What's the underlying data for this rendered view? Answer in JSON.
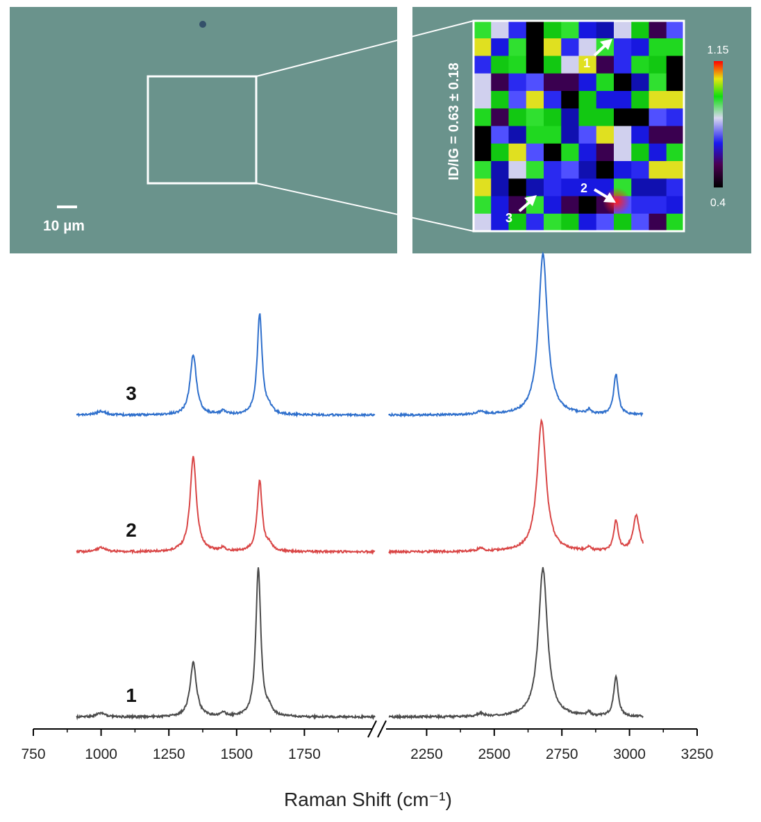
{
  "micrograph": {
    "scale_bar_label": "10 µm"
  },
  "raman_map": {
    "ratio_label": "ID/IG = 0.63 ± 0.18",
    "colorbar": {
      "max_label": "1.15",
      "min_label": "0.4",
      "max": 1.15,
      "min": 0.4
    },
    "markers": [
      {
        "label": "1"
      },
      {
        "label": "2"
      },
      {
        "label": "3"
      }
    ]
  },
  "chart_data": {
    "type": "line",
    "xlabel": "Raman Shift (cm⁻¹)",
    "ylabel": "",
    "xlim": [
      750,
      3250
    ],
    "x_ticks": [
      750,
      1000,
      1250,
      1500,
      1750,
      2250,
      2500,
      2750,
      3000,
      3250
    ],
    "x_tick_labels": [
      "750",
      "1000",
      "1250",
      "1500",
      "1750",
      "2250",
      "2500",
      "2750",
      "3000",
      "3250"
    ],
    "axis_break": [
      2000,
      2100
    ],
    "y_axis_shown": false,
    "grid": false,
    "series": [
      {
        "name": "3",
        "color": "#2e6fcc",
        "offset": 2,
        "peaks": [
          {
            "center": 1340,
            "height": 0.3
          },
          {
            "center": 1585,
            "height": 0.5
          },
          {
            "center": 2680,
            "height": 0.8
          },
          {
            "center": 2950,
            "height": 0.2
          }
        ]
      },
      {
        "name": "2",
        "color": "#d94545",
        "offset": 1,
        "peaks": [
          {
            "center": 1340,
            "height": 0.47
          },
          {
            "center": 1585,
            "height": 0.35
          },
          {
            "center": 2675,
            "height": 0.65
          },
          {
            "center": 2950,
            "height": 0.15
          },
          {
            "center": 3025,
            "height": 0.18
          }
        ]
      },
      {
        "name": "1",
        "color": "#4a4a4a",
        "offset": 0,
        "peaks": [
          {
            "center": 1340,
            "height": 0.27
          },
          {
            "center": 1580,
            "height": 0.74
          },
          {
            "center": 2680,
            "height": 0.74
          },
          {
            "center": 2950,
            "height": 0.2
          }
        ]
      }
    ]
  }
}
